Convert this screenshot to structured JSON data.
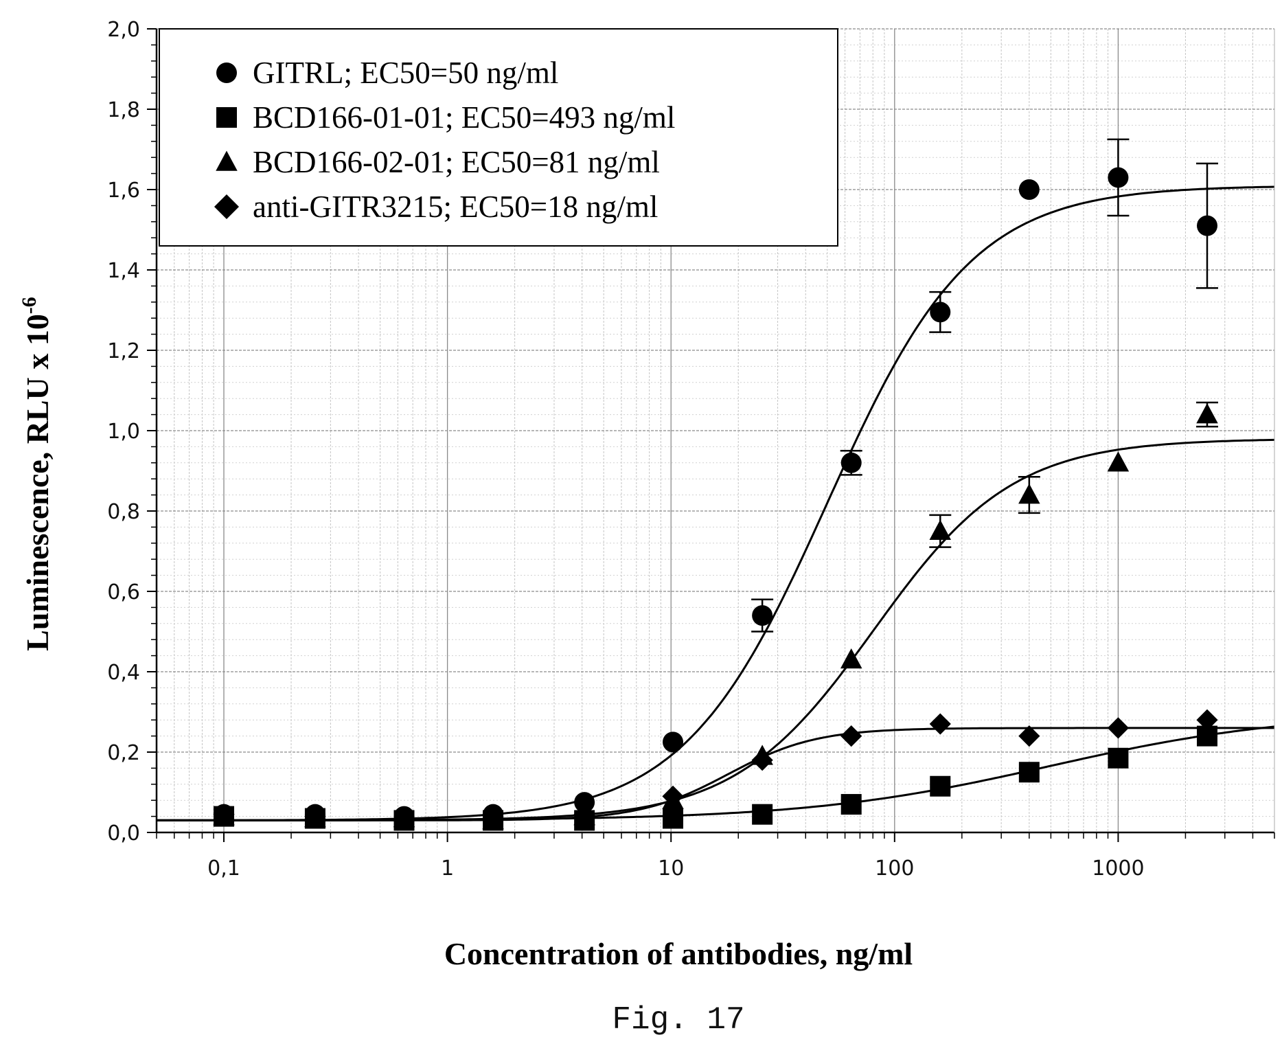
{
  "chart_data": {
    "type": "scatter",
    "x_scale": "log",
    "xlim": [
      0.05,
      5000
    ],
    "ylim": [
      0,
      2.0
    ],
    "xlabel": "Concentration of antibodies, ng/ml",
    "ylabel_main": "Luminescence, RLU x 10",
    "ylabel_exp": "-6",
    "x_ticks": [
      {
        "value": 0.1,
        "label": "0,1"
      },
      {
        "value": 1,
        "label": "1"
      },
      {
        "value": 10,
        "label": "10"
      },
      {
        "value": 100,
        "label": "100"
      },
      {
        "value": 1000,
        "label": "1000"
      }
    ],
    "y_ticks": [
      {
        "value": 0.0,
        "label": "0,0"
      },
      {
        "value": 0.2,
        "label": "0,2"
      },
      {
        "value": 0.4,
        "label": "0,4"
      },
      {
        "value": 0.6,
        "label": "0,6"
      },
      {
        "value": 0.8,
        "label": "0,8"
      },
      {
        "value": 1.0,
        "label": "1,0"
      },
      {
        "value": 1.2,
        "label": "1,2"
      },
      {
        "value": 1.4,
        "label": "1,4"
      },
      {
        "value": 1.6,
        "label": "1,6"
      },
      {
        "value": 1.8,
        "label": "1,8"
      },
      {
        "value": 2.0,
        "label": "2,0"
      }
    ],
    "grid": true,
    "legend_position": "top-left",
    "series": [
      {
        "name": "GITRL; EC50=50 ng/ml",
        "marker": "circle",
        "x": [
          0.1,
          0.256,
          0.64,
          1.6,
          4.1,
          10.2,
          25.6,
          64,
          160,
          400,
          1000,
          2500
        ],
        "y": [
          0.045,
          0.045,
          0.04,
          0.045,
          0.075,
          0.225,
          0.54,
          0.92,
          1.295,
          1.6,
          1.63,
          1.51
        ],
        "err": [
          0,
          0,
          0,
          0,
          0,
          0,
          0.04,
          0.03,
          0.05,
          0,
          0.095,
          0.155
        ],
        "fit": {
          "bottom": 0.03,
          "top": 1.61,
          "ec50": 50,
          "hill": 1.35
        }
      },
      {
        "name": "BCD166-01-01; EC50=493 ng/ml",
        "marker": "square",
        "x": [
          0.1,
          0.256,
          0.64,
          1.6,
          4.1,
          10.2,
          25.6,
          64,
          160,
          400,
          1000,
          2500
        ],
        "y": [
          0.04,
          0.035,
          0.03,
          0.03,
          0.03,
          0.035,
          0.045,
          0.07,
          0.115,
          0.15,
          0.185,
          0.24
        ],
        "err": [
          0,
          0,
          0,
          0,
          0,
          0,
          0,
          0,
          0,
          0,
          0,
          0
        ],
        "fit": {
          "bottom": 0.03,
          "top": 0.3,
          "ec50": 493,
          "hill": 0.8
        }
      },
      {
        "name": "BCD166-02-01; EC50=81 ng/ml",
        "marker": "triangle",
        "x": [
          0.1,
          0.256,
          0.64,
          1.6,
          4.1,
          10.2,
          25.6,
          64,
          160,
          400,
          1000,
          2500
        ],
        "y": [
          0.04,
          0.035,
          0.035,
          0.03,
          0.04,
          0.08,
          0.19,
          0.43,
          0.75,
          0.84,
          0.92,
          1.04
        ],
        "err": [
          0,
          0,
          0,
          0,
          0,
          0,
          0,
          0,
          0.04,
          0.045,
          0,
          0.03
        ],
        "fit": {
          "bottom": 0.03,
          "top": 0.98,
          "ec50": 81,
          "hill": 1.4
        }
      },
      {
        "name": "anti-GITR3215; EC50=18 ng/ml",
        "marker": "diamond",
        "x": [
          0.1,
          0.256,
          0.64,
          1.6,
          4.1,
          10.2,
          25.6,
          64,
          160,
          400,
          1000,
          2500
        ],
        "y": [
          0.045,
          0.04,
          0.035,
          0.035,
          0.045,
          0.09,
          0.18,
          0.24,
          0.27,
          0.24,
          0.26,
          0.28
        ],
        "err": [
          0,
          0,
          0,
          0,
          0,
          0,
          0,
          0,
          0,
          0,
          0,
          0
        ],
        "fit": {
          "bottom": 0.03,
          "top": 0.26,
          "ec50": 18,
          "hill": 2.2
        }
      }
    ]
  },
  "caption": "Fig. 17"
}
